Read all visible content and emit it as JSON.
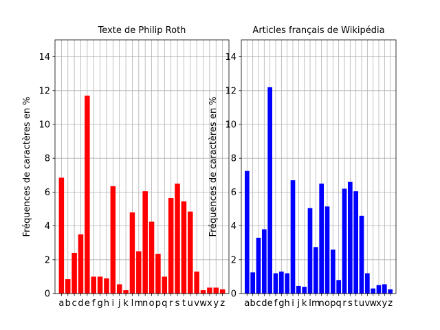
{
  "chart_data": [
    {
      "type": "bar",
      "title": "Texte de Philip Roth",
      "xlabel": "",
      "ylabel": "Fréquences de caractères en %",
      "ylim": [
        0,
        15
      ],
      "yticks": [
        0,
        2,
        4,
        6,
        8,
        10,
        12,
        14
      ],
      "grid": true,
      "color": "#ff0000",
      "categories": [
        "a",
        "b",
        "c",
        "d",
        "e",
        "f",
        "g",
        "h",
        "i",
        "j",
        "k",
        "l",
        "m",
        "n",
        "o",
        "p",
        "q",
        "r",
        "s",
        "t",
        "u",
        "v",
        "w",
        "x",
        "y",
        "z"
      ],
      "values": [
        6.85,
        0.85,
        2.4,
        3.5,
        11.7,
        1.0,
        1.0,
        0.9,
        6.35,
        0.55,
        0.2,
        4.8,
        2.5,
        6.05,
        4.25,
        2.35,
        1.0,
        5.65,
        6.5,
        5.45,
        4.85,
        1.3,
        0.2,
        0.35,
        0.35,
        0.25
      ]
    },
    {
      "type": "bar",
      "title": "Articles français de Wikipédia",
      "xlabel": "",
      "ylabel": "Fréquences de caractères en %",
      "ylim": [
        0,
        15
      ],
      "yticks": [
        0,
        2,
        4,
        6,
        8,
        10,
        12,
        14
      ],
      "grid": true,
      "color": "#0000ff",
      "categories": [
        "a",
        "b",
        "c",
        "d",
        "e",
        "f",
        "g",
        "h",
        "i",
        "j",
        "k",
        "l",
        "m",
        "n",
        "o",
        "p",
        "q",
        "r",
        "s",
        "t",
        "u",
        "v",
        "w",
        "x",
        "y",
        "z"
      ],
      "values": [
        7.25,
        1.25,
        3.3,
        3.8,
        12.2,
        1.2,
        1.3,
        1.2,
        6.7,
        0.45,
        0.4,
        5.05,
        2.75,
        6.5,
        5.15,
        2.6,
        0.8,
        6.2,
        6.6,
        6.05,
        4.6,
        1.2,
        0.3,
        0.5,
        0.55,
        0.25
      ]
    }
  ]
}
